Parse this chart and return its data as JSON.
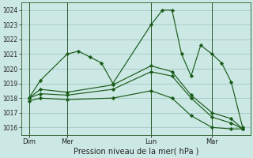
{
  "xlabel": "Pression niveau de la mer( hPa )",
  "background_color": "#cce8e4",
  "grid_color": "#a8ccc8",
  "line_color": "#1a5c1a",
  "ylim": [
    1015.5,
    1024.5
  ],
  "yticks": [
    1016,
    1017,
    1018,
    1019,
    1020,
    1021,
    1022,
    1023,
    1024
  ],
  "xlim": [
    0,
    240
  ],
  "day_labels": [
    "Dim",
    "Mer",
    "Lun",
    "Mar"
  ],
  "day_positions": [
    8,
    48,
    136,
    200
  ],
  "vline_positions": [
    8,
    48,
    136,
    200
  ],
  "series": [
    {
      "x": [
        8,
        20,
        48,
        60,
        72,
        84,
        96,
        136,
        148,
        158,
        168,
        178,
        188,
        200,
        210,
        220,
        232
      ],
      "y": [
        1018.0,
        1019.2,
        1021.0,
        1021.2,
        1020.8,
        1020.4,
        1019.0,
        1023.0,
        1024.0,
        1024.0,
        1021.0,
        1019.5,
        1021.6,
        1021.0,
        1020.4,
        1019.1,
        1016.0
      ]
    },
    {
      "x": [
        8,
        20,
        48,
        96,
        136,
        158,
        178,
        200,
        220,
        232
      ],
      "y": [
        1017.8,
        1018.0,
        1017.9,
        1018.0,
        1018.5,
        1018.0,
        1016.8,
        1016.0,
        1015.9,
        1015.9
      ]
    },
    {
      "x": [
        8,
        20,
        48,
        96,
        136,
        158,
        178,
        200,
        220,
        232
      ],
      "y": [
        1018.0,
        1018.3,
        1018.2,
        1018.6,
        1019.8,
        1019.5,
        1018.0,
        1016.7,
        1016.3,
        1015.9
      ]
    },
    {
      "x": [
        8,
        20,
        48,
        96,
        136,
        158,
        178,
        200,
        220,
        232
      ],
      "y": [
        1018.0,
        1018.6,
        1018.4,
        1018.9,
        1020.2,
        1019.8,
        1018.2,
        1017.0,
        1016.6,
        1015.9
      ]
    }
  ]
}
